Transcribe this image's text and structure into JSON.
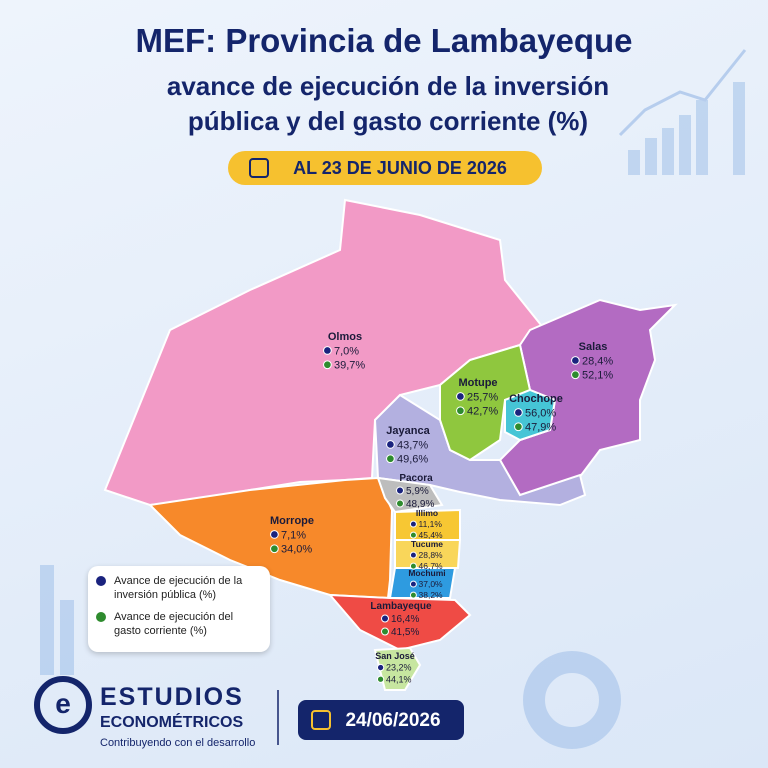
{
  "header": {
    "title": "MEF: Provincia de Lambayeque",
    "subtitle_lines": [
      "avance de ejecución de la inversión",
      "pública y del gasto corriente (%)"
    ],
    "date_badge": "AL 23 DE JUNIO DE 2026"
  },
  "districts": [
    {
      "name": "Olmos",
      "inversion": "7,0%",
      "gasto": "39,7%"
    },
    {
      "name": "Salas",
      "inversion": "28,4%",
      "gasto": "52,1%"
    },
    {
      "name": "Motupe",
      "inversion": "25,7%",
      "gasto": "42,7%"
    },
    {
      "name": "Chochope",
      "inversion": "56,0%",
      "gasto": "47,9%"
    },
    {
      "name": "Jayanca",
      "inversion": "43,7%",
      "gasto": "49,6%"
    },
    {
      "name": "Pacora",
      "inversion": "5,9%",
      "gasto": "48,9%"
    },
    {
      "name": "Morrope",
      "inversion": "7,1%",
      "gasto": "34,0%"
    },
    {
      "name": "Illimo",
      "inversion": "11,1%",
      "gasto": "45,4%"
    },
    {
      "name": "Tucume",
      "inversion": "28,8%",
      "gasto": "46,7%"
    },
    {
      "name": "Mochumi",
      "inversion": "37,0%",
      "gasto": "38,2%"
    },
    {
      "name": "Lambayeque",
      "inversion": "16,4%",
      "gasto": "41,5%"
    },
    {
      "name": "San José",
      "inversion": "23,2%",
      "gasto": "44,1%"
    }
  ],
  "legend": {
    "items": [
      {
        "label": "Avance de ejecución de la inversión pública (%)"
      },
      {
        "label": "Avance de ejecución del gasto corriente (%)"
      }
    ]
  },
  "footer": {
    "brand_line1": "ESTUDIOS",
    "brand_line2": "ECONOMÉTRICOS",
    "tagline": "Contribuyendo con el desarrollo",
    "date": "24/06/2026"
  }
}
